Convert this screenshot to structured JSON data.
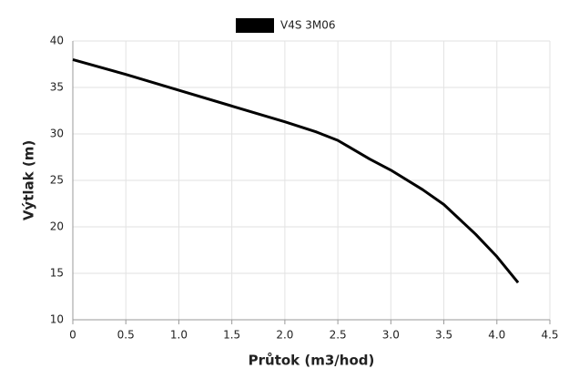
{
  "chart_data": {
    "type": "line",
    "x_label": "Průtok (m3/hod)",
    "y_label": "Výtlak (m)",
    "series": [
      {
        "name": "V4S 3M06",
        "color": "#000000",
        "x": [
          0,
          0.5,
          1.0,
          1.5,
          2.0,
          2.3,
          2.5,
          2.8,
          3.0,
          3.3,
          3.5,
          3.8,
          4.0,
          4.2
        ],
        "values": [
          38,
          36.4,
          34.7,
          33.0,
          31.3,
          30.2,
          29.3,
          27.3,
          26.1,
          24.0,
          22.4,
          19.2,
          16.8,
          14.0
        ]
      }
    ],
    "xlim": [
      0,
      4.5
    ],
    "xticks": [
      0,
      0.5,
      {
        "value": 1,
        "label": "1.0"
      },
      1.5,
      {
        "value": 2,
        "label": "2.0"
      },
      2.5,
      {
        "value": 3,
        "label": "3.0"
      },
      3.5,
      {
        "value": 4,
        "label": "4.0"
      },
      4.5
    ],
    "ylim": [
      10,
      40
    ],
    "yticks": [
      10,
      15,
      20,
      25,
      30,
      35,
      40
    ],
    "grid": true,
    "legend": "top"
  }
}
